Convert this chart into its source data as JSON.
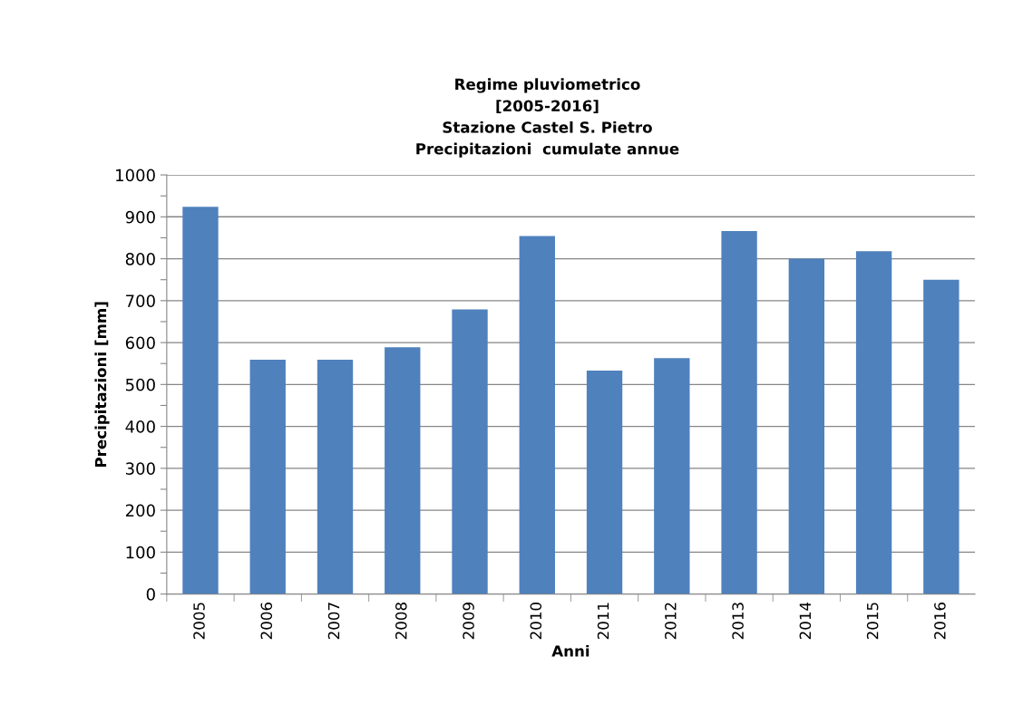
{
  "chart_data": {
    "type": "bar",
    "title": "Regime pluviometrico\n[2005-2016]\nStazione Castel S. Pietro\nPrecipitazioni  cumulate annue",
    "xlabel": "Anni",
    "ylabel": "Precipitazioni [mm]",
    "categories": [
      "2005",
      "2006",
      "2007",
      "2008",
      "2009",
      "2010",
      "2011",
      "2012",
      "2013",
      "2014",
      "2015",
      "2016"
    ],
    "values": [
      924,
      559,
      559,
      589,
      679,
      854,
      533,
      563,
      866,
      800,
      818,
      750
    ],
    "color": "#4f81bd",
    "ylim": [
      0,
      1000
    ],
    "yticks": [
      0,
      {
        "value": 50,
        "label": null
      },
      100,
      {
        "value": 150,
        "label": null
      },
      200,
      {
        "value": 250,
        "label": null
      },
      300,
      {
        "value": 350,
        "label": null
      },
      400,
      {
        "value": 450,
        "label": null
      },
      500,
      {
        "value": 550,
        "label": null
      },
      600,
      {
        "value": 650,
        "label": null
      },
      700,
      {
        "value": 750,
        "label": null
      },
      800,
      {
        "value": 850,
        "label": null
      },
      900,
      {
        "value": 950,
        "label": null
      },
      1000
    ],
    "grid": "y"
  }
}
